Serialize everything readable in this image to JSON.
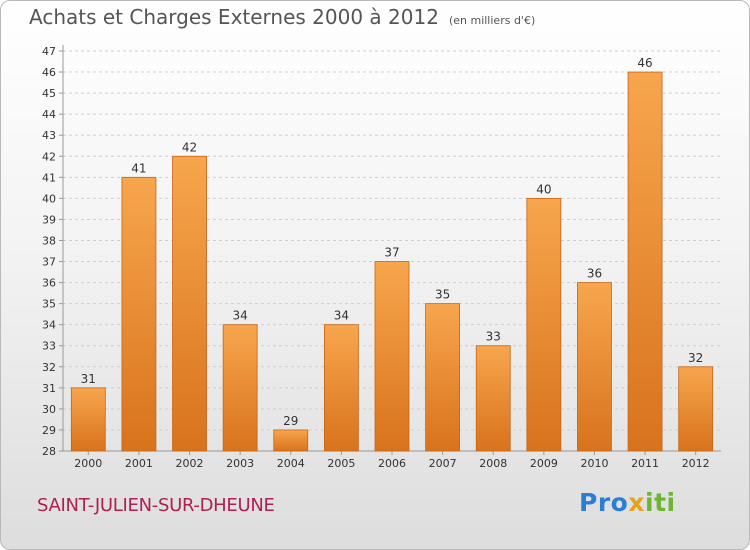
{
  "title": "Achats et Charges Externes 2000 à 2012",
  "subtitle": "(en milliers d'€)",
  "town": "SAINT-JULIEN-SUR-DHEUNE",
  "brand": {
    "letters": [
      {
        "ch": "P",
        "color": "#2a7fd4"
      },
      {
        "ch": "r",
        "color": "#2a7fd4"
      },
      {
        "ch": "o",
        "color": "#2a7fd4"
      },
      {
        "ch": "x",
        "color": "#e8a21a"
      },
      {
        "ch": "i",
        "color": "#6bb533"
      },
      {
        "ch": "t",
        "color": "#6bb533"
      },
      {
        "ch": "i",
        "color": "#6bb533"
      }
    ]
  },
  "colors": {
    "bar_top": "#f7a64e",
    "bar_bottom": "#d8731c",
    "bar_edge": "#c86414",
    "grid": "#cfcfcf",
    "axis_text": "#333333"
  },
  "chart_data": {
    "type": "bar",
    "title": "Achats et Charges Externes 2000 à 2012",
    "subtitle": "(en milliers d'€)",
    "categories": [
      "2000",
      "2001",
      "2002",
      "2003",
      "2004",
      "2005",
      "2006",
      "2007",
      "2008",
      "2009",
      "2010",
      "2011",
      "2012"
    ],
    "values": [
      31,
      41,
      42,
      34,
      29,
      34,
      37,
      35,
      33,
      40,
      36,
      46,
      32
    ],
    "ylim": [
      28,
      47
    ],
    "yticks": [
      28,
      29,
      30,
      31,
      32,
      33,
      34,
      35,
      36,
      37,
      38,
      39,
      40,
      41,
      42,
      43,
      44,
      45,
      46,
      47
    ],
    "grid": true,
    "data_labels": true
  }
}
